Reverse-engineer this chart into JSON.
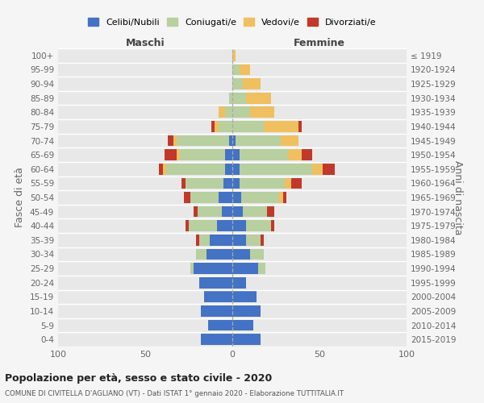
{
  "age_groups": [
    "0-4",
    "5-9",
    "10-14",
    "15-19",
    "20-24",
    "25-29",
    "30-34",
    "35-39",
    "40-44",
    "45-49",
    "50-54",
    "55-59",
    "60-64",
    "65-69",
    "70-74",
    "75-79",
    "80-84",
    "85-89",
    "90-94",
    "95-99",
    "100+"
  ],
  "birth_years": [
    "2015-2019",
    "2010-2014",
    "2005-2009",
    "2000-2004",
    "1995-1999",
    "1990-1994",
    "1985-1989",
    "1980-1984",
    "1975-1979",
    "1970-1974",
    "1965-1969",
    "1960-1964",
    "1955-1959",
    "1950-1954",
    "1945-1949",
    "1940-1944",
    "1935-1939",
    "1930-1934",
    "1925-1929",
    "1920-1924",
    "≤ 1919"
  ],
  "colors": {
    "celibi": "#4472c4",
    "coniugati": "#b8cfa0",
    "vedovi": "#f0c060",
    "divorziati": "#c0392b"
  },
  "maschi": {
    "celibi": [
      18,
      14,
      18,
      16,
      19,
      22,
      15,
      13,
      9,
      6,
      8,
      5,
      4,
      4,
      2,
      0,
      0,
      0,
      0,
      0,
      0
    ],
    "coniugati": [
      0,
      0,
      0,
      0,
      0,
      2,
      6,
      6,
      16,
      14,
      16,
      22,
      34,
      26,
      30,
      8,
      4,
      2,
      0,
      0,
      0
    ],
    "vedovi": [
      0,
      0,
      0,
      0,
      0,
      0,
      0,
      0,
      0,
      0,
      0,
      0,
      2,
      2,
      2,
      2,
      4,
      0,
      0,
      0,
      0
    ],
    "divorziati": [
      0,
      0,
      0,
      0,
      0,
      0,
      0,
      2,
      2,
      2,
      4,
      2,
      2,
      7,
      3,
      2,
      0,
      0,
      0,
      0,
      0
    ]
  },
  "femmine": {
    "celibi": [
      16,
      12,
      16,
      14,
      8,
      15,
      10,
      8,
      8,
      6,
      5,
      4,
      4,
      4,
      2,
      0,
      0,
      0,
      0,
      0,
      0
    ],
    "coniugati": [
      0,
      0,
      0,
      0,
      0,
      4,
      8,
      8,
      14,
      14,
      22,
      26,
      42,
      28,
      26,
      18,
      10,
      8,
      6,
      4,
      0
    ],
    "vedovi": [
      0,
      0,
      0,
      0,
      0,
      0,
      0,
      0,
      0,
      0,
      2,
      4,
      6,
      8,
      10,
      20,
      14,
      14,
      10,
      6,
      2
    ],
    "divorziati": [
      0,
      0,
      0,
      0,
      0,
      0,
      0,
      2,
      2,
      4,
      2,
      6,
      7,
      6,
      0,
      2,
      0,
      0,
      0,
      0,
      0
    ]
  },
  "xlim": [
    -100,
    100
  ],
  "xticks": [
    -100,
    -50,
    0,
    50,
    100
  ],
  "xticklabels": [
    "100",
    "50",
    "0",
    "50",
    "100"
  ],
  "title": "Popolazione per età, sesso e stato civile - 2020",
  "subtitle": "COMUNE DI CIVITELLA D'AGLIANO (VT) - Dati ISTAT 1° gennaio 2020 - Elaborazione TUTTITALIA.IT",
  "ylabel_left": "Fasce di età",
  "ylabel_right": "Anni di nascita",
  "header_maschi": "Maschi",
  "header_femmine": "Femmine",
  "legend_labels": [
    "Celibi/Nubili",
    "Coniugati/e",
    "Vedovi/e",
    "Divorziati/e"
  ],
  "bg_color": "#f5f5f5",
  "plot_bg": "#e8e8e8"
}
